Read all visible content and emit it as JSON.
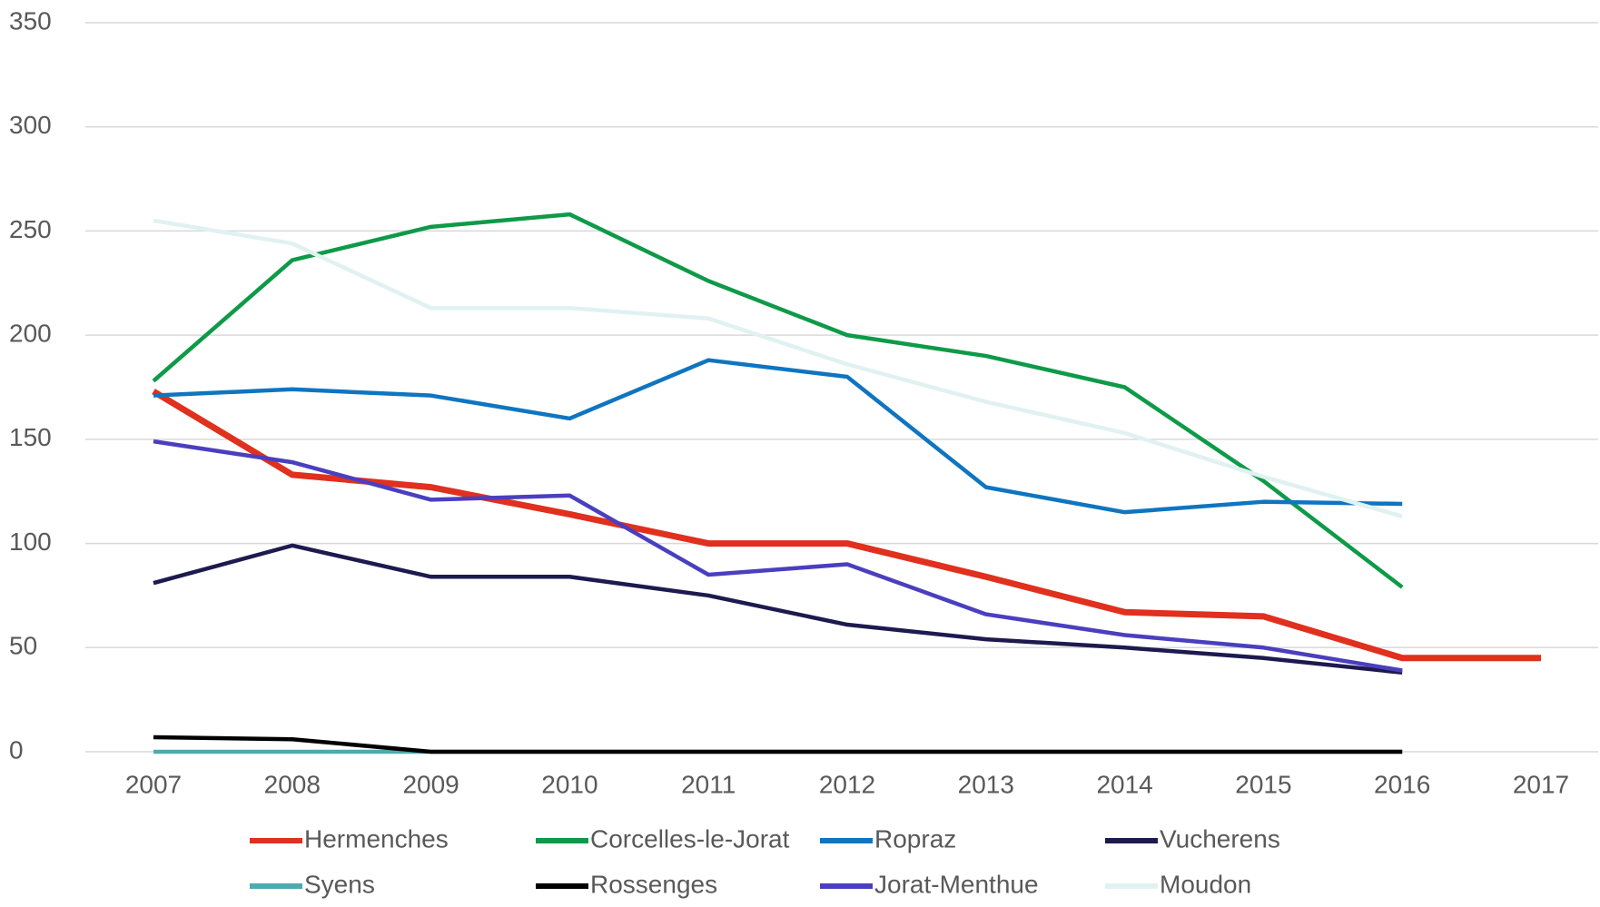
{
  "chart_data": {
    "type": "line",
    "categories": [
      "2007",
      "2008",
      "2009",
      "2010",
      "2011",
      "2012",
      "2013",
      "2014",
      "2015",
      "2016",
      "2017"
    ],
    "ylim": [
      0,
      350
    ],
    "yticks": [
      0,
      50,
      100,
      150,
      200,
      250,
      300,
      350
    ],
    "grid": true,
    "series": [
      {
        "name": "Hermenches",
        "color": "#e0301e",
        "values": [
          173,
          133,
          127,
          114,
          100,
          100,
          84,
          67,
          65,
          45,
          45
        ]
      },
      {
        "name": "Corcelles-le-Jorat",
        "color": "#0e9a48",
        "values": [
          178,
          236,
          252,
          258,
          226,
          200,
          190,
          175,
          130,
          79,
          null
        ]
      },
      {
        "name": "Ropraz",
        "color": "#0f75c0",
        "values": [
          171,
          174,
          171,
          160,
          188,
          180,
          127,
          115,
          120,
          119,
          null
        ]
      },
      {
        "name": "Vucherens",
        "color": "#1d1a4f",
        "values": [
          81,
          99,
          84,
          84,
          75,
          61,
          54,
          50,
          45,
          38,
          null
        ]
      },
      {
        "name": "Syens",
        "color": "#4fa9b0",
        "values": [
          0,
          0,
          0,
          0,
          0,
          0,
          0,
          0,
          0,
          0,
          null
        ]
      },
      {
        "name": "Rossenges",
        "color": "#000000",
        "values": [
          7,
          6,
          0,
          0,
          0,
          0,
          0,
          0,
          0,
          0,
          null
        ]
      },
      {
        "name": "Jorat-Menthue",
        "color": "#4a3fbf",
        "values": [
          149,
          139,
          121,
          123,
          85,
          90,
          66,
          56,
          50,
          39,
          null
        ]
      },
      {
        "name": "Moudon",
        "color": "#e1f1f2",
        "values": [
          255,
          244,
          213,
          213,
          208,
          186,
          168,
          153,
          132,
          113,
          null
        ]
      }
    ]
  }
}
